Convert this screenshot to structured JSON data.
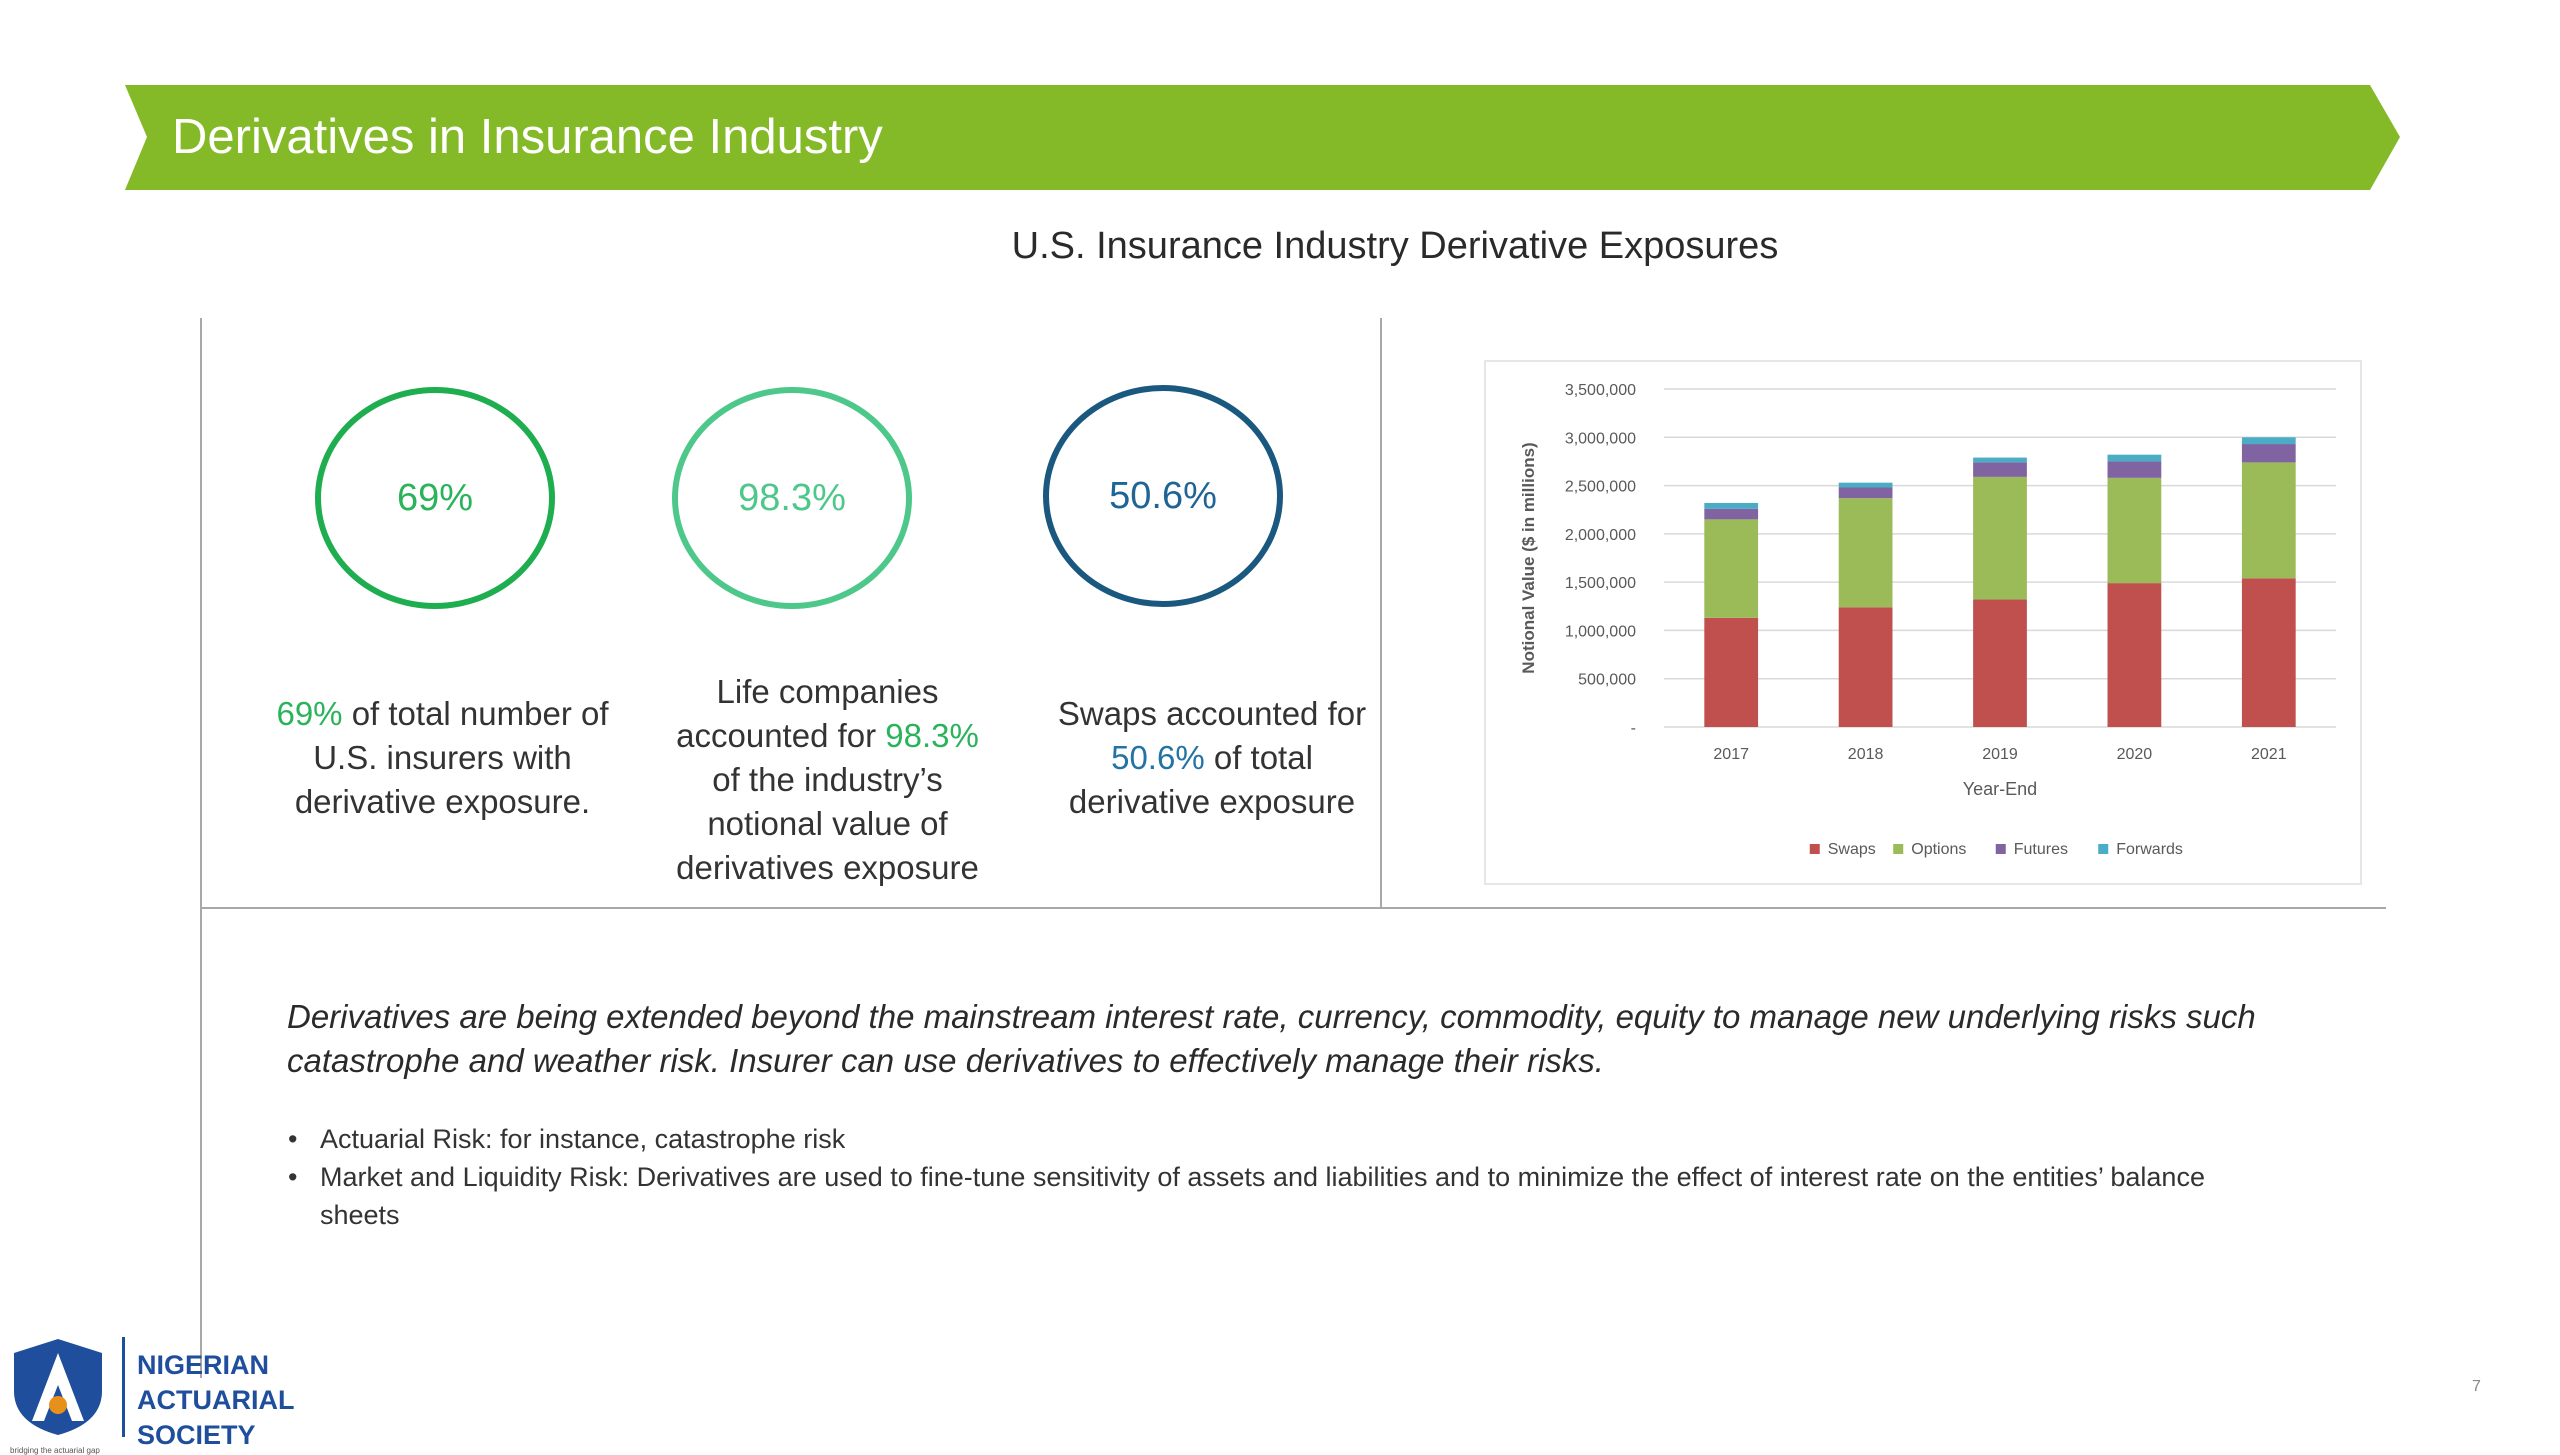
{
  "slide": {
    "title": "Derivatives in Insurance Industry",
    "section_title": "U.S. Insurance Industry Derivative Exposures",
    "page_number": "7"
  },
  "stats": [
    {
      "value": "69%",
      "ring_color": "#1ead4f",
      "text_color": "#2bb35b",
      "text_before": "",
      "highlight": "69%",
      "text_after": " of total number of U.S. insurers with derivative exposure."
    },
    {
      "value": "98.3%",
      "ring_color": "#4ec88a",
      "text_color": "#4ec88a",
      "text_before": "Life companies accounted for ",
      "highlight": "98.3%",
      "text_after": " of the industry’s notional value of derivatives exposure"
    },
    {
      "value": "50.6%",
      "ring_color": "#1a587f",
      "text_color": "#1e6596",
      "text_before": "Swaps accounted for ",
      "highlight": "50.6%",
      "text_after": " of total derivative exposure"
    }
  ],
  "chart_data": {
    "type": "bar",
    "stacked": true,
    "title": "",
    "xlabel": "Year-End",
    "ylabel": "Notional Value ($ in millions)",
    "ylim": [
      0,
      3500000
    ],
    "yticks": [
      "-",
      "500,000",
      "1,000,000",
      "1,500,000",
      "2,000,000",
      "2,500,000",
      "3,000,000",
      "3,500,000"
    ],
    "categories": [
      "2017",
      "2018",
      "2019",
      "2020",
      "2021"
    ],
    "grid": true,
    "legend_position": "bottom",
    "series": [
      {
        "name": "Swaps",
        "color": "#c0504d",
        "values": [
          1130000,
          1240000,
          1320000,
          1490000,
          1540000
        ]
      },
      {
        "name": "Options",
        "color": "#9bbb59",
        "values": [
          1020000,
          1130000,
          1270000,
          1090000,
          1200000
        ]
      },
      {
        "name": "Futures",
        "color": "#8064a2",
        "values": [
          110000,
          110000,
          150000,
          170000,
          190000
        ]
      },
      {
        "name": "Forwards",
        "color": "#4bacc6",
        "values": [
          60000,
          50000,
          50000,
          70000,
          70000
        ]
      }
    ]
  },
  "body": {
    "paragraph": "Derivatives are being extended beyond the mainstream interest rate, currency, commodity, equity to manage new underlying risks such catastrophe and weather risk. Insurer can use derivatives to effectively manage their risks.",
    "bullet_symbol": "•",
    "bullets": [
      "Actuarial Risk: for instance, catastrophe risk",
      "Market and Liquidity Risk: Derivatives are used to fine-tune sensitivity of assets and liabilities and to minimize the effect of interest rate on the entities’ balance sheets"
    ]
  },
  "logo": {
    "line1": "NIGERIAN",
    "line2": "ACTUARIAL",
    "line3": "SOCIETY",
    "tagline": "bridging the actuarial gap"
  }
}
